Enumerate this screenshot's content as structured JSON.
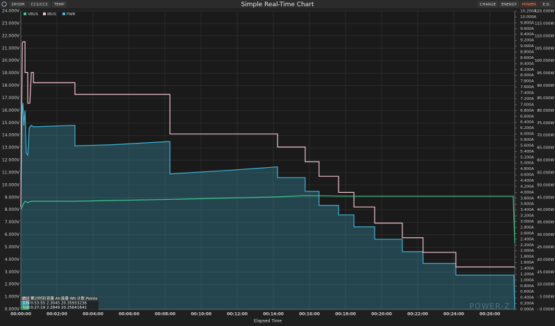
{
  "chart_data": {
    "type": "line",
    "title": "Simple Real-Time Chart",
    "x_label": "Elapsed Time",
    "tabs_left": [
      "DP/DM",
      "CC1/CC2",
      "TEMP"
    ],
    "tabs_right": [
      "CHARGE",
      "ENERGY",
      "POWER",
      "E.D."
    ],
    "active_tab_right": 2,
    "watermark": "POWER-Z",
    "grid": true,
    "legend": "top-left",
    "xlim": [
      0,
      1643
    ],
    "xticks": [
      {
        "value": 0,
        "label": "00:00:00"
      },
      {
        "value": 120,
        "label": "00:02:00"
      },
      {
        "value": 240,
        "label": "00:04:00"
      },
      {
        "value": 360,
        "label": "00:06:00"
      },
      {
        "value": 480,
        "label": "00:08:00"
      },
      {
        "value": 600,
        "label": "00:10:00"
      },
      {
        "value": 720,
        "label": "00:12:00"
      },
      {
        "value": 840,
        "label": "00:14:00"
      },
      {
        "value": 960,
        "label": "00:16:00"
      },
      {
        "value": 1080,
        "label": "00:18:00"
      },
      {
        "value": 1200,
        "label": "00:20:00"
      },
      {
        "value": 1320,
        "label": "00:22:00"
      },
      {
        "value": 1440,
        "label": "00:24:00"
      },
      {
        "value": 1560,
        "label": "00:26:00"
      }
    ],
    "ylim": [
      0,
      24
    ],
    "yticks": [
      {
        "value": 0,
        "label": "0.000V"
      },
      {
        "value": 1,
        "label": "1.000V"
      },
      {
        "value": 2,
        "label": "2.000V"
      },
      {
        "value": 3,
        "label": "3.000V"
      },
      {
        "value": 4,
        "label": "4.000V"
      },
      {
        "value": 5,
        "label": "5.000V"
      },
      {
        "value": 6,
        "label": "6.000V"
      },
      {
        "value": 7,
        "label": "7.000V"
      },
      {
        "value": 8,
        "label": "8.000V"
      },
      {
        "value": 9,
        "label": "9.000V"
      },
      {
        "value": 10,
        "label": "10.000V"
      },
      {
        "value": 11,
        "label": "11.000V"
      },
      {
        "value": 12,
        "label": "12.000V"
      },
      {
        "value": 13,
        "label": "13.000V"
      },
      {
        "value": 14,
        "label": "14.000V"
      },
      {
        "value": 15,
        "label": "15.000V"
      },
      {
        "value": 16,
        "label": "16.000V"
      },
      {
        "value": 17,
        "label": "17.000V"
      },
      {
        "value": 18,
        "label": "18.000V"
      },
      {
        "value": 19,
        "label": "19.000V"
      },
      {
        "value": 20,
        "label": "20.000V"
      },
      {
        "value": 21,
        "label": "21.000V"
      },
      {
        "value": 22,
        "label": "22.000V"
      },
      {
        "value": 23,
        "label": "23.000V"
      },
      {
        "value": 24,
        "label": "24.000V"
      }
    ],
    "y2lim": [
      0,
      10.2
    ],
    "y2ticks": [
      {
        "value": 0,
        "label": "0.000A"
      },
      {
        "value": 0.2,
        "label": "0.200A"
      },
      {
        "value": 0.4,
        "label": "0.400A"
      },
      {
        "value": 0.6,
        "label": "0.600A"
      },
      {
        "value": 0.8,
        "label": "0.800A"
      },
      {
        "value": 1,
        "label": "1.000A"
      },
      {
        "value": 1.2,
        "label": "1.200A"
      },
      {
        "value": 1.4,
        "label": "1.400A"
      },
      {
        "value": 1.6,
        "label": "1.600A"
      },
      {
        "value": 1.8,
        "label": "1.800A"
      },
      {
        "value": 2,
        "label": "2.000A"
      },
      {
        "value": 2.2,
        "label": "2.200A"
      },
      {
        "value": 2.4,
        "label": "2.400A"
      },
      {
        "value": 2.6,
        "label": "2.600A"
      },
      {
        "value": 2.8,
        "label": "2.800A"
      },
      {
        "value": 3,
        "label": "3.000A"
      },
      {
        "value": 3.2,
        "label": "3.200A"
      },
      {
        "value": 3.4,
        "label": "3.400A"
      },
      {
        "value": 3.6,
        "label": "3.600A"
      },
      {
        "value": 3.8,
        "label": "3.800A"
      },
      {
        "value": 4,
        "label": "4.000A"
      },
      {
        "value": 4.2,
        "label": "4.200A"
      },
      {
        "value": 4.4,
        "label": "4.400A"
      },
      {
        "value": 4.6,
        "label": "4.600A"
      },
      {
        "value": 4.8,
        "label": "4.800A"
      },
      {
        "value": 5,
        "label": "5.000A"
      },
      {
        "value": 5.2,
        "label": "5.200A"
      },
      {
        "value": 5.4,
        "label": "5.400A"
      },
      {
        "value": 5.6,
        "label": "5.600A"
      },
      {
        "value": 5.8,
        "label": "5.800A"
      },
      {
        "value": 6,
        "label": "6.000A"
      },
      {
        "value": 6.2,
        "label": "6.200A"
      },
      {
        "value": 6.4,
        "label": "6.400A"
      },
      {
        "value": 6.6,
        "label": "6.600A"
      },
      {
        "value": 6.8,
        "label": "6.800A"
      },
      {
        "value": 7,
        "label": "7.000A"
      },
      {
        "value": 7.2,
        "label": "7.200A"
      },
      {
        "value": 7.4,
        "label": "7.400A"
      },
      {
        "value": 7.6,
        "label": "7.600A"
      },
      {
        "value": 7.8,
        "label": "7.800A"
      },
      {
        "value": 8,
        "label": "8.000A"
      },
      {
        "value": 8.2,
        "label": "8.200A"
      },
      {
        "value": 8.4,
        "label": "8.400A"
      },
      {
        "value": 8.6,
        "label": "8.600A"
      },
      {
        "value": 8.8,
        "label": "8.800A"
      },
      {
        "value": 9,
        "label": "9.000A"
      },
      {
        "value": 9.2,
        "label": "9.200A"
      },
      {
        "value": 9.4,
        "label": "9.400A"
      },
      {
        "value": 9.6,
        "label": "9.600A"
      },
      {
        "value": 9.8,
        "label": "9.800A"
      },
      {
        "value": 10,
        "label": "10.000A"
      },
      {
        "value": 10.2,
        "label": "10.200A"
      }
    ],
    "y3lim": [
      0,
      120
    ],
    "y3ticks": [
      {
        "value": 0,
        "label": "0.000W"
      },
      {
        "value": 5,
        "label": "5.000W"
      },
      {
        "value": 10,
        "label": "10.000W"
      },
      {
        "value": 15,
        "label": "15.000W"
      },
      {
        "value": 20,
        "label": "20.000W"
      },
      {
        "value": 25,
        "label": "25.000W"
      },
      {
        "value": 30,
        "label": "30.000W"
      },
      {
        "value": 35,
        "label": "35.000W"
      },
      {
        "value": 40,
        "label": "40.000W"
      },
      {
        "value": 45,
        "label": "45.000W"
      },
      {
        "value": 50,
        "label": "50.000W"
      },
      {
        "value": 55,
        "label": "55.000W"
      },
      {
        "value": 60,
        "label": "60.000W"
      },
      {
        "value": 65,
        "label": "65.000W"
      },
      {
        "value": 70,
        "label": "70.000W"
      },
      {
        "value": 75,
        "label": "75.000W"
      },
      {
        "value": 80,
        "label": "80.000W"
      },
      {
        "value": 85,
        "label": "85.000W"
      },
      {
        "value": 90,
        "label": "90.000W"
      },
      {
        "value": 95,
        "label": "95.000W"
      },
      {
        "value": 100,
        "label": "100.000W"
      },
      {
        "value": 105,
        "label": "105.000W"
      },
      {
        "value": 110,
        "label": "110.000W"
      },
      {
        "value": 115,
        "label": "115.000W"
      },
      {
        "value": 120,
        "label": "120.000W"
      }
    ],
    "series": [
      {
        "name": "VBUS",
        "color": "#3ec98a",
        "axis": "y",
        "x": [
          0,
          7,
          14,
          23,
          35,
          60,
          180,
          496,
          854,
          946,
          1108,
          1447,
          1638,
          1643
        ],
        "values": [
          8.0,
          8.4,
          8.7,
          8.6,
          8.7,
          8.7,
          8.7,
          8.85,
          9.05,
          9.15,
          9.1,
          9.1,
          9.1,
          5.3
        ]
      },
      {
        "name": "IBUS",
        "color": "#f2c4cf",
        "axis": "y2",
        "x": [
          0,
          5,
          7,
          14,
          14,
          23,
          23,
          30,
          35,
          42,
          42,
          180,
          180,
          496,
          496,
          854,
          854,
          946,
          946,
          992,
          992,
          1057,
          1057,
          1108,
          1108,
          1177,
          1177,
          1269,
          1269,
          1338,
          1338,
          1447,
          1447,
          1643
        ],
        "values": [
          3.5,
          9.1,
          9.15,
          9.15,
          8.1,
          8.1,
          7.05,
          7.05,
          8.1,
          8.1,
          7.75,
          7.75,
          7.35,
          7.35,
          6.0,
          6.0,
          5.55,
          5.55,
          5.05,
          5.05,
          4.55,
          4.55,
          4.0,
          4.0,
          3.5,
          3.5,
          2.95,
          2.95,
          2.45,
          2.45,
          1.95,
          1.95,
          1.45,
          1.45
        ]
      },
      {
        "name": "PWR",
        "color": "#3fb4d8",
        "axis": "y3",
        "fill": true,
        "x": [
          0,
          4,
          7,
          10,
          14,
          18,
          23,
          28,
          35,
          42,
          60,
          170,
          180,
          180,
          300,
          490,
          496,
          496,
          700,
          850,
          854,
          854,
          946,
          946,
          992,
          992,
          1057,
          1057,
          1108,
          1108,
          1177,
          1177,
          1269,
          1269,
          1338,
          1338,
          1447,
          1447,
          1640,
          1643
        ],
        "values": [
          52,
          78,
          83,
          74,
          80,
          63,
          62,
          73,
          74,
          73.5,
          73.5,
          74,
          74,
          65.8,
          66.2,
          67.5,
          67.5,
          54.5,
          56,
          57.3,
          57.3,
          53,
          53,
          47.5,
          47.5,
          41.8,
          41.8,
          38,
          38,
          33.2,
          33.2,
          28.2,
          28.2,
          23.2,
          23.2,
          18.5,
          18.5,
          13.8,
          13.8,
          0
        ]
      }
    ],
    "stats_table": {
      "header": [
        "统计",
        "累计时间",
        "容量 Ah",
        "能量 Wh",
        "计数 Points"
      ],
      "rows": [
        [
          "全程",
          "0:53:55",
          "2.3045",
          "20.3593",
          "3236"
        ],
        [
          "当前",
          "0:27:19",
          "2.2849",
          "20.2564",
          "1641"
        ]
      ]
    }
  }
}
